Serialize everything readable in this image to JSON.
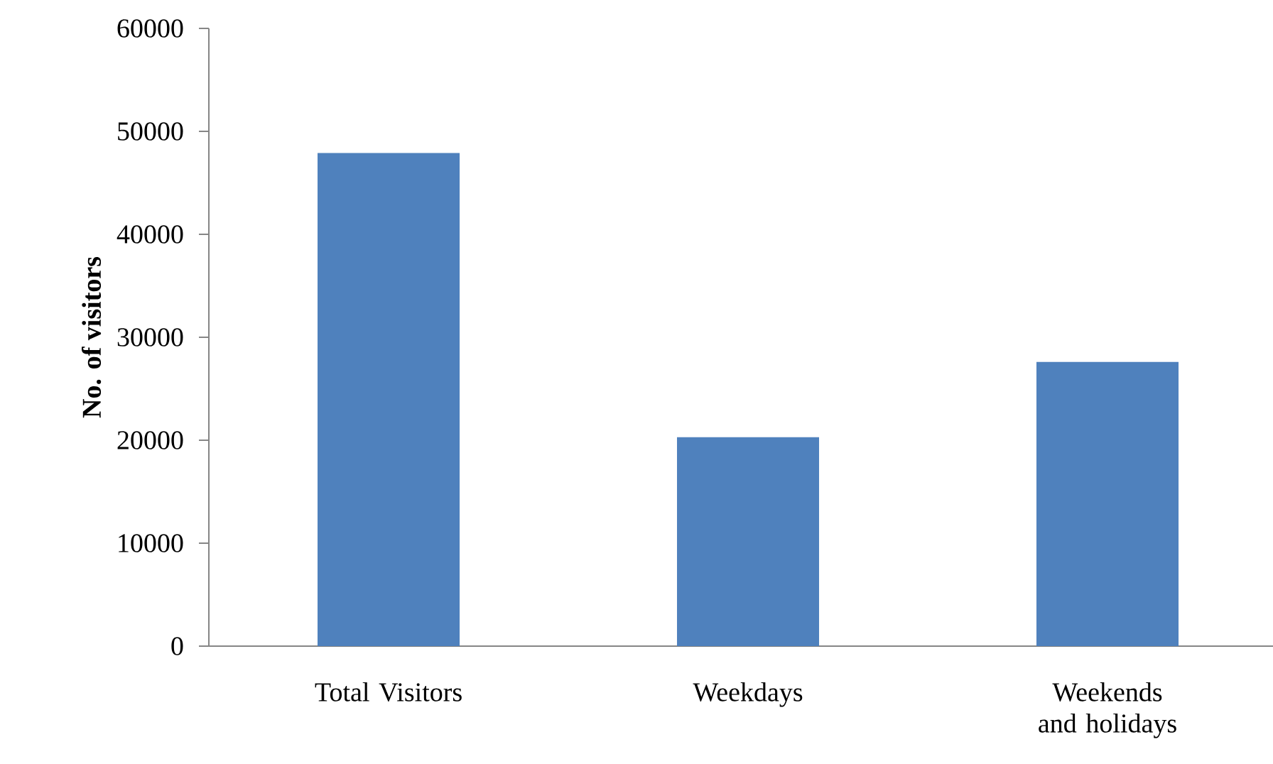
{
  "chart_data": {
    "type": "bar",
    "ylabel": "No. of visitors",
    "categories": [
      "Total Visitors",
      "Weekdays",
      "Weekends and holidays"
    ],
    "values": [
      47900,
      20300,
      27600
    ],
    "color": "#4f81bd",
    "ylim": [
      0,
      60000
    ],
    "yticks": [
      0,
      10000,
      20000,
      30000,
      40000,
      50000,
      60000
    ],
    "grid": false
  }
}
